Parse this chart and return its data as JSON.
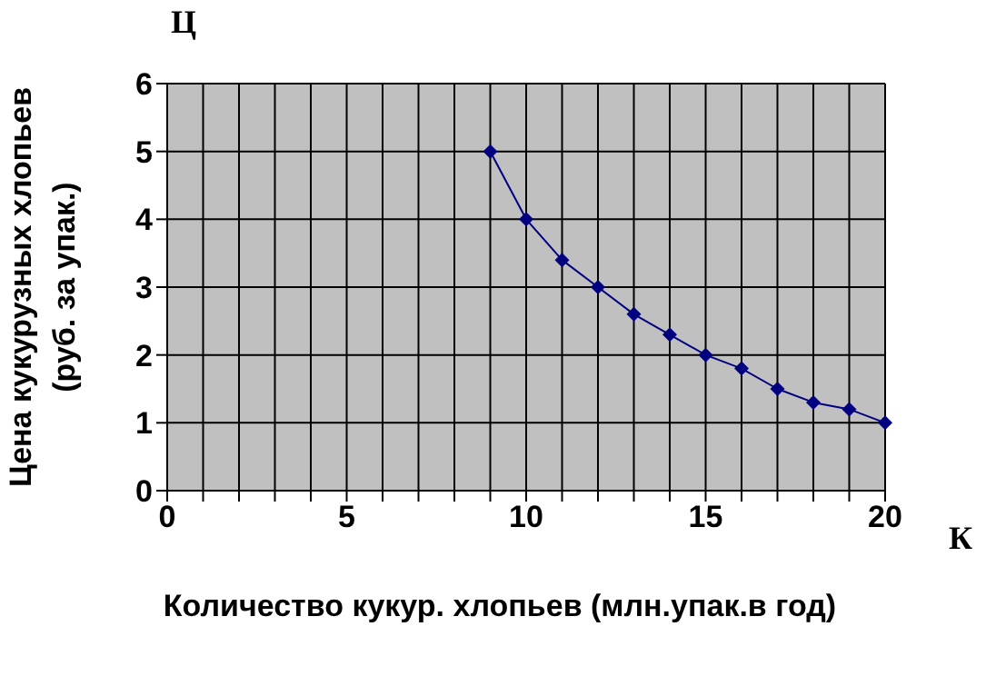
{
  "chart_data": {
    "type": "line",
    "xlabel": "Количество кукур. хлопьев (млн.упак.в год)",
    "ylabel": "Цена кукурузных хлопьев (руб. за упак.)",
    "annotations": [
      "Ц",
      "К"
    ],
    "x": [
      9,
      10,
      11,
      12,
      13,
      14,
      15,
      16,
      17,
      18,
      19,
      20
    ],
    "series": [
      {
        "color": "#000080",
        "values": [
          5,
          4,
          3.4,
          3,
          2.6,
          2.3,
          2,
          1.8,
          1.5,
          1.3,
          1.2,
          1
        ]
      }
    ],
    "xlim": [
      0,
      20
    ],
    "xticks": [
      0,
      {
        "value": 1,
        "label": null
      },
      {
        "value": 2,
        "label": null
      },
      {
        "value": 3,
        "label": null
      },
      {
        "value": 4,
        "label": null
      },
      5,
      {
        "value": 6,
        "label": null
      },
      {
        "value": 7,
        "label": null
      },
      {
        "value": 8,
        "label": null
      },
      {
        "value": 9,
        "label": null
      },
      10,
      {
        "value": 11,
        "label": null
      },
      {
        "value": 12,
        "label": null
      },
      {
        "value": 13,
        "label": null
      },
      {
        "value": 14,
        "label": null
      },
      15,
      {
        "value": 16,
        "label": null
      },
      {
        "value": 17,
        "label": null
      },
      {
        "value": 18,
        "label": null
      },
      {
        "value": 19,
        "label": null
      },
      20
    ],
    "ylim": [
      0,
      6
    ],
    "yticks": [
      0,
      1,
      2,
      3,
      4,
      5,
      6
    ],
    "grid": true,
    "legend": false,
    "marker": "diamond",
    "line_style": "solid"
  }
}
